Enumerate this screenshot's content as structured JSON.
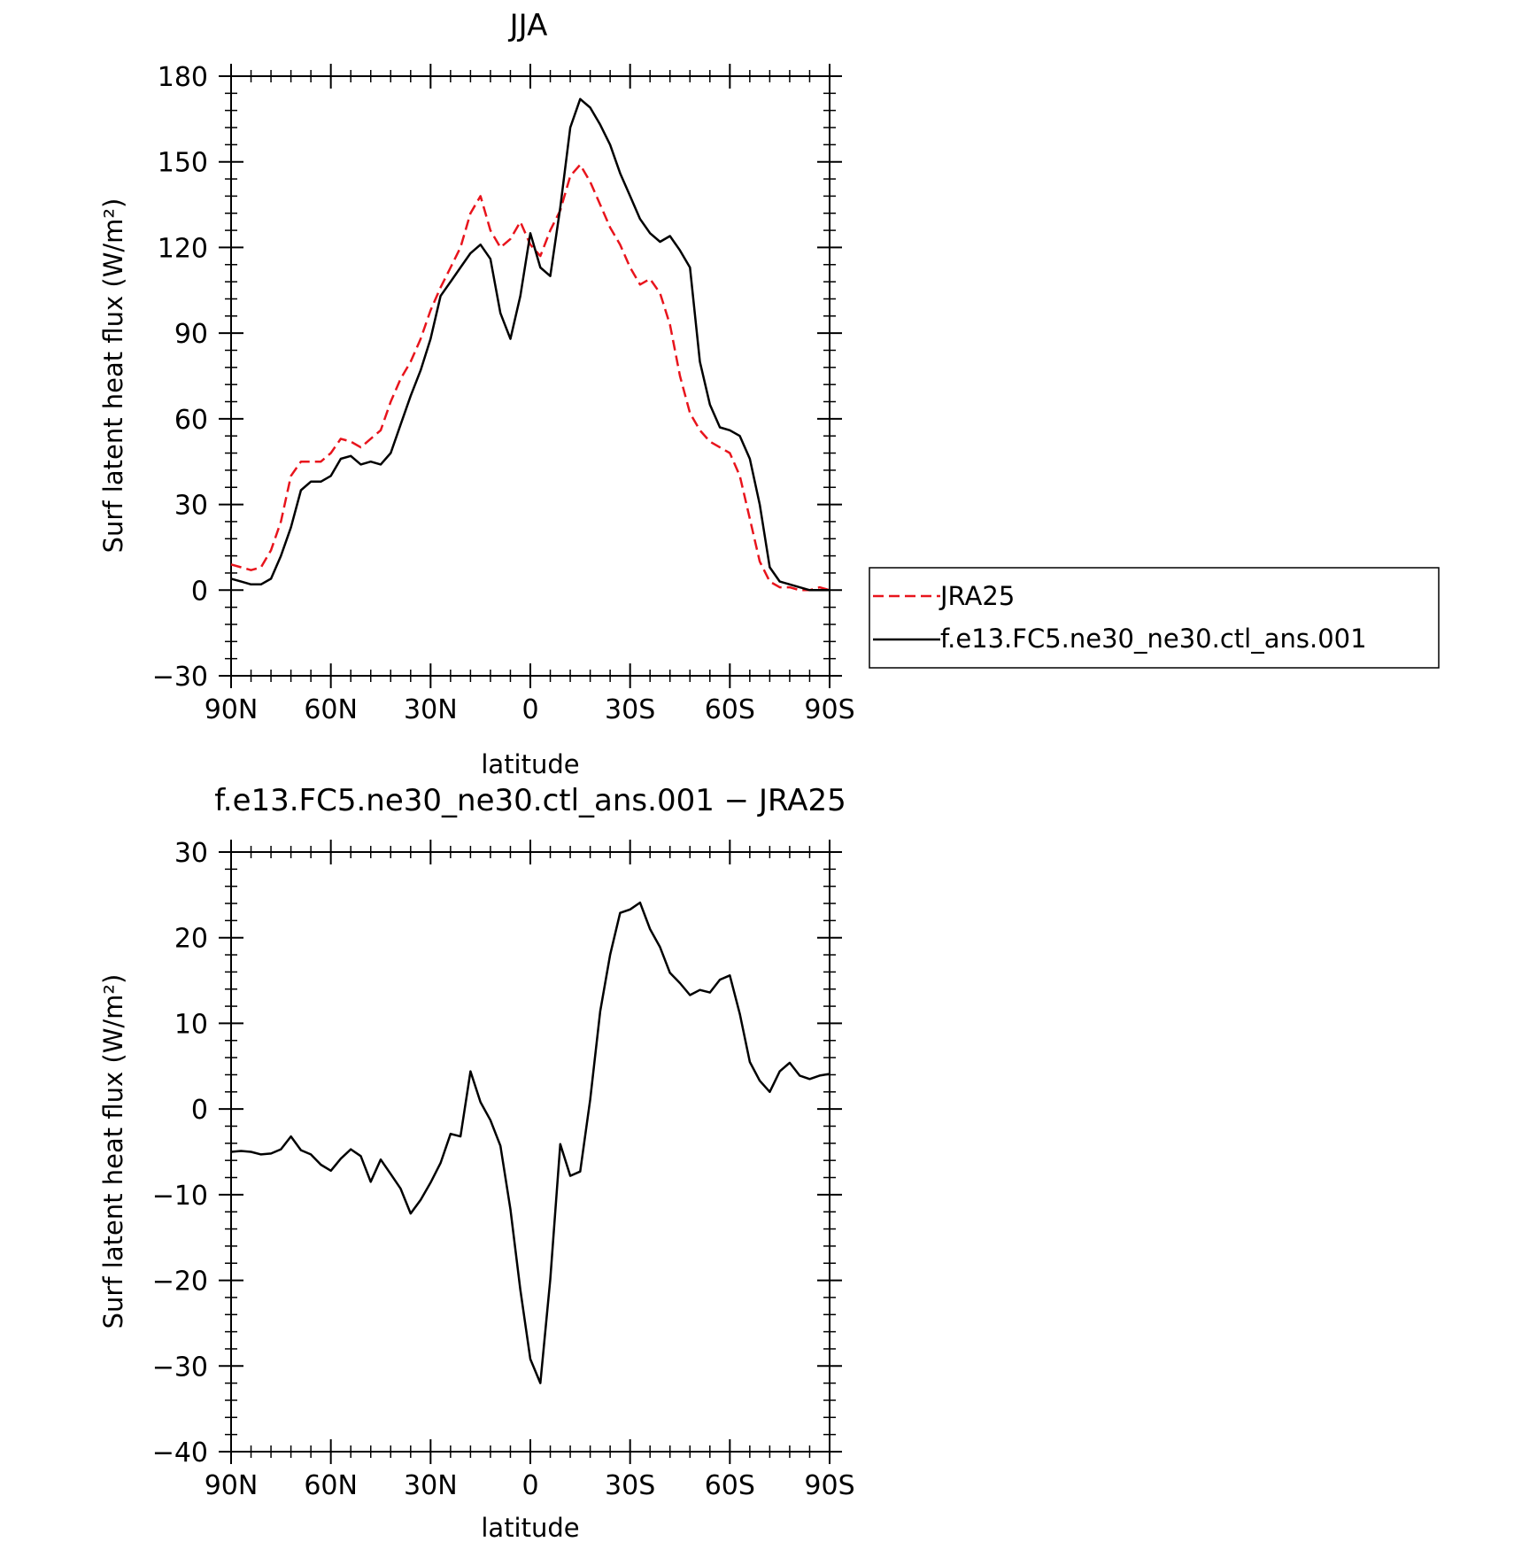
{
  "chart_data": [
    {
      "type": "line",
      "title": "JJA",
      "xlabel": "latitude",
      "ylabel": "Surf latent heat flux (W/m²)",
      "xlim": [
        90,
        -90
      ],
      "ylim": [
        -30,
        180
      ],
      "x_ticks": [
        90,
        60,
        30,
        0,
        -30,
        -60,
        -90
      ],
      "x_tick_labels": [
        "90N",
        "60N",
        "30N",
        "0",
        "30S",
        "60S",
        "90S"
      ],
      "y_ticks": [
        -30,
        0,
        30,
        60,
        90,
        120,
        150,
        180
      ],
      "y_tick_labels": [
        "−30",
        "0",
        "30",
        "60",
        "90",
        "120",
        "150",
        "180"
      ],
      "legend_position": "right",
      "grid": false,
      "series": [
        {
          "name": "JRA25",
          "color": "#e8141c",
          "dash": "dashed",
          "x": [
            90,
            87,
            84,
            81,
            78,
            75,
            72,
            69,
            66,
            63,
            60,
            57,
            54,
            51,
            48,
            45,
            42,
            39,
            36,
            33,
            30,
            27,
            24,
            21,
            18,
            15,
            12,
            9,
            6,
            3,
            0,
            -3,
            -6,
            -9,
            -12,
            -15,
            -18,
            -21,
            -24,
            -27,
            -30,
            -33,
            -36,
            -39,
            -42,
            -45,
            -48,
            -51,
            -54,
            -57,
            -60,
            -63,
            -66,
            -69,
            -72,
            -75,
            -78,
            -81,
            -84,
            -87,
            -90
          ],
          "values": [
            9,
            8,
            7,
            8,
            14,
            24,
            40,
            45,
            45,
            45,
            48,
            53,
            52,
            50,
            53,
            56,
            66,
            74,
            80,
            88,
            98,
            106,
            113,
            120,
            132,
            138,
            126,
            120,
            123,
            129,
            121,
            117,
            126,
            133,
            145,
            149,
            143,
            135,
            127,
            121,
            113,
            107,
            109,
            104,
            93,
            75,
            62,
            56,
            52,
            50,
            48,
            40,
            25,
            10,
            3,
            1,
            1,
            0,
            0,
            1,
            0
          ]
        },
        {
          "name": "f.e13.FC5.ne30_ne30.ctl_ans.001",
          "color": "#000000",
          "dash": "solid",
          "x": [
            90,
            87,
            84,
            81,
            78,
            75,
            72,
            69,
            66,
            63,
            60,
            57,
            54,
            51,
            48,
            45,
            42,
            39,
            36,
            33,
            30,
            27,
            24,
            21,
            18,
            15,
            12,
            9,
            6,
            3,
            0,
            -3,
            -6,
            -9,
            -12,
            -15,
            -18,
            -21,
            -24,
            -27,
            -30,
            -33,
            -36,
            -39,
            -42,
            -45,
            -48,
            -51,
            -54,
            -57,
            -60,
            -63,
            -66,
            -69,
            -72,
            -75,
            -78,
            -81,
            -84,
            -87,
            -90
          ],
          "values": [
            4,
            3,
            2,
            2,
            4,
            12,
            22,
            35,
            38,
            38,
            40,
            46,
            47,
            44,
            45,
            44,
            48,
            58,
            68,
            77,
            88,
            103,
            108,
            113,
            118,
            121,
            116,
            97,
            88,
            103,
            125,
            113,
            110,
            134,
            162,
            172,
            169,
            163,
            156,
            146,
            138,
            130,
            125,
            122,
            124,
            119,
            113,
            80,
            65,
            57,
            56,
            54,
            46,
            30,
            8,
            3,
            2,
            1,
            0,
            0,
            0
          ]
        }
      ]
    },
    {
      "type": "line",
      "title": "f.e13.FC5.ne30_ne30.ctl_ans.001 − JRA25",
      "xlabel": "latitude",
      "ylabel": "Surf latent heat flux (W/m²)",
      "xlim": [
        90,
        -90
      ],
      "ylim": [
        -40,
        30
      ],
      "x_ticks": [
        90,
        60,
        30,
        0,
        -30,
        -60,
        -90
      ],
      "x_tick_labels": [
        "90N",
        "60N",
        "30N",
        "0",
        "30S",
        "60S",
        "90S"
      ],
      "y_ticks": [
        -40,
        -30,
        -20,
        -10,
        0,
        10,
        20,
        30
      ],
      "y_tick_labels": [
        "−40",
        "−30",
        "−20",
        "−10",
        "0",
        "10",
        "20",
        "30"
      ],
      "grid": false,
      "series": [
        {
          "color": "#000000",
          "dash": "solid",
          "x": [
            90,
            87,
            84,
            81,
            78,
            75,
            72,
            69,
            66,
            63,
            60,
            57,
            54,
            51,
            48,
            45,
            42,
            39,
            36,
            33,
            30,
            27,
            24,
            21,
            18,
            15,
            12,
            9,
            6,
            3,
            0,
            -3,
            -6,
            -9,
            -12,
            -15,
            -18,
            -21,
            -24,
            -27,
            -30,
            -33,
            -36,
            -39,
            -42,
            -45,
            -48,
            -51,
            -54,
            -57,
            -60,
            -63,
            -66,
            -69,
            -72,
            -75,
            -78,
            -81,
            -84,
            -87,
            -90
          ],
          "values": [
            -5,
            -4.9,
            -5.0,
            -5.3,
            -5.2,
            -4.7,
            -3.2,
            -4.8,
            -5.3,
            -6.5,
            -7.2,
            -5.8,
            -4.7,
            -5.5,
            -8.5,
            -5.9,
            -7.6,
            -9.3,
            -12.2,
            -10.6,
            -8.6,
            -6.3,
            -2.9,
            -3.2,
            4.4,
            0.8,
            -1.3,
            -4.3,
            -11.7,
            -21.1,
            -29.2,
            -32.0,
            -19.9,
            -4.1,
            -7.8,
            -7.3,
            1.1,
            11.4,
            18.0,
            22.9,
            23.3,
            24.1,
            21.0,
            18.9,
            15.9,
            14.7,
            13.3,
            13.9,
            13.6,
            15.1,
            15.6,
            11.1,
            5.5,
            3.3,
            2.0,
            4.4,
            5.4,
            3.9,
            3.5,
            3.9,
            4.1
          ]
        }
      ]
    }
  ],
  "legend": [
    {
      "label": "JRA25",
      "color": "#e8141c",
      "dash": "dashed"
    },
    {
      "label": "f.e13.FC5.ne30_ne30.ctl_ans.001",
      "color": "#000000",
      "dash": "solid"
    }
  ]
}
